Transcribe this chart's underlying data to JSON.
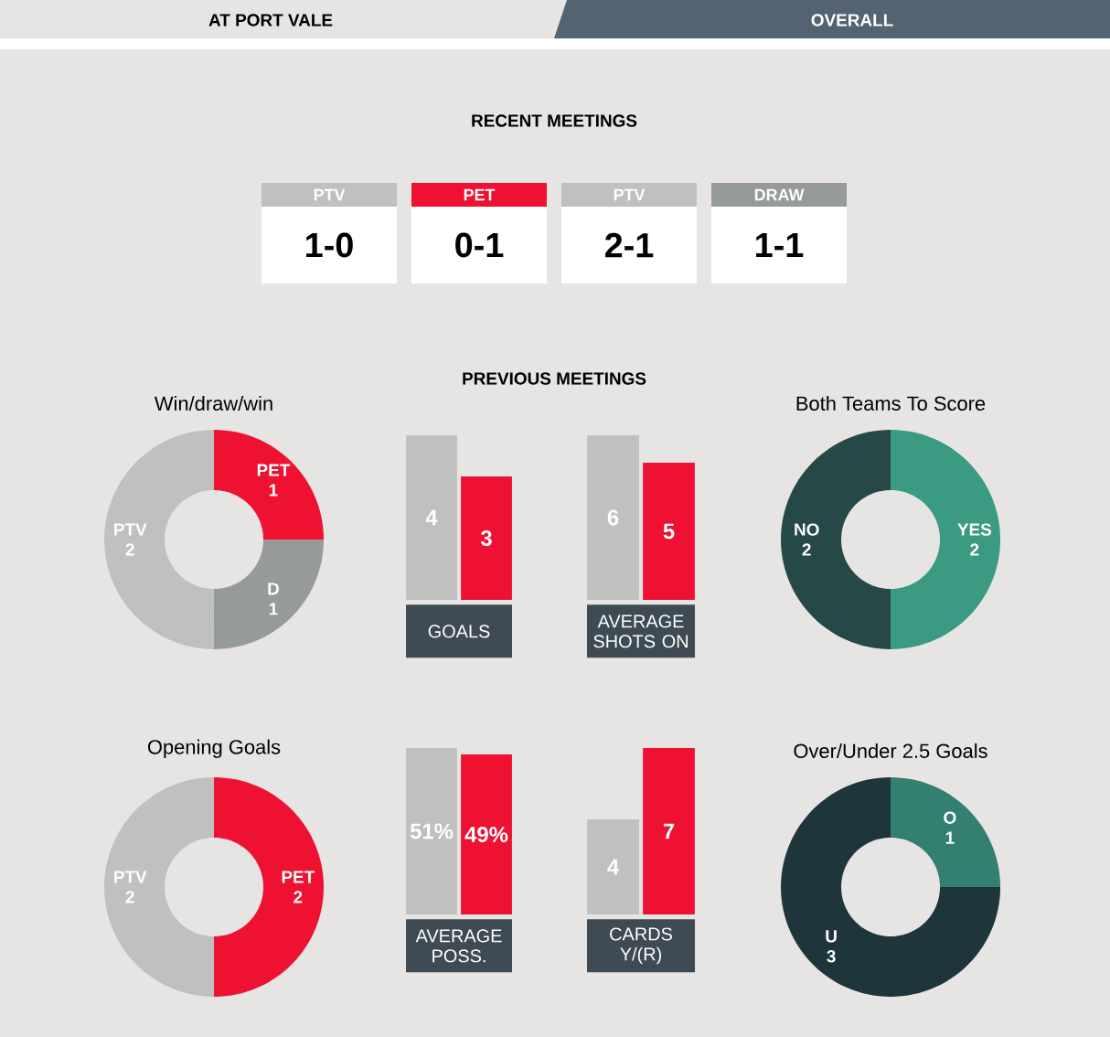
{
  "chart_data": [
    {
      "type": "other",
      "title": "RECENT MEETINGS",
      "annotations": [
        "AT PORT VALE",
        "OVERALL",
        "PREVIOUS MEETINGS"
      ],
      "categories": [
        "PTV",
        "PET",
        "PTV",
        "DRAW"
      ],
      "value_labels": [
        "1-0",
        "0-1",
        "2-1",
        "1-1"
      ],
      "colors": [
        "#c0c0c0",
        "#ee1131",
        "#c0c0c0",
        "#969b98"
      ]
    },
    {
      "type": "donut",
      "title": "Win/draw/win",
      "categories": [
        "PET",
        "D",
        "PTV"
      ],
      "values": [
        1,
        1,
        2
      ],
      "colors": [
        "#ee1131",
        "#969b98",
        "#c0c0c0"
      ],
      "data_labels": true
    },
    {
      "type": "bar",
      "xlabel": "GOALS",
      "categories": [
        null,
        null
      ],
      "values": [
        4,
        3
      ],
      "colors": [
        "#c0c0c0",
        "#ee1131"
      ],
      "data_labels": true
    },
    {
      "type": "bar",
      "xlabel": "AVERAGE SHOTS ON",
      "categories": [
        null,
        null
      ],
      "values": [
        6,
        5
      ],
      "colors": [
        "#c0c0c0",
        "#ee1131"
      ],
      "data_labels": true
    },
    {
      "type": "donut",
      "title": "Both Teams To Score",
      "categories": [
        "YES",
        "NO"
      ],
      "values": [
        2,
        2
      ],
      "colors": [
        "#3a9a82",
        "#264846"
      ],
      "data_labels": true
    },
    {
      "type": "donut",
      "title": "Opening Goals",
      "categories": [
        "PET",
        "PTV"
      ],
      "values": [
        2,
        2
      ],
      "colors": [
        "#ee1131",
        "#c0c0c0"
      ],
      "data_labels": true
    },
    {
      "type": "bar",
      "xlabel": "AVERAGE POSS.",
      "categories": [
        null,
        null
      ],
      "values": [
        51,
        49
      ],
      "value_labels": [
        "51%",
        "49%"
      ],
      "colors": [
        "#c0c0c0",
        "#ee1131"
      ]
    },
    {
      "type": "bar",
      "xlabel": "CARDS Y/(R)",
      "categories": [
        null,
        null
      ],
      "values": [
        4,
        7
      ],
      "colors": [
        "#c0c0c0",
        "#ee1131"
      ],
      "data_labels": true
    },
    {
      "type": "donut",
      "title": "Over/Under 2.5 Goals",
      "categories": [
        "O",
        "U"
      ],
      "values": [
        1,
        3
      ],
      "colors": [
        "#348070",
        "#1e353b"
      ],
      "data_labels": true
    }
  ]
}
